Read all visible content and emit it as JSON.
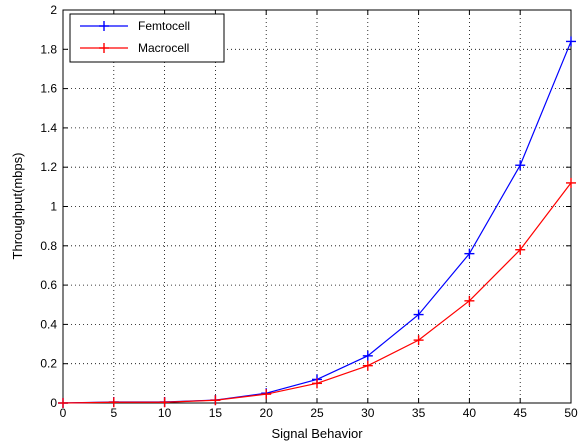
{
  "chart_data": {
    "type": "line",
    "xlabel": "Signal Behavior",
    "ylabel": "Throughput(mbps)",
    "x": [
      0,
      5,
      10,
      15,
      20,
      25,
      30,
      35,
      40,
      45,
      50
    ],
    "xlim": [
      0,
      50
    ],
    "ylim": [
      0,
      2
    ],
    "xticks": [
      "0",
      "5",
      "10",
      "15",
      "20",
      "25",
      "30",
      "35",
      "40",
      "45",
      "50"
    ],
    "yticks": [
      "0",
      "0.2",
      "0.4",
      "0.6",
      "0.8",
      "1",
      "1.2",
      "1.4",
      "1.6",
      "1.8",
      "2"
    ],
    "grid": true,
    "legend_position": "top-left",
    "series": [
      {
        "name": "Femtocell",
        "color": "#0000ff",
        "marker": "plus",
        "values": [
          0.0,
          0.005,
          0.005,
          0.015,
          0.05,
          0.12,
          0.24,
          0.45,
          0.76,
          1.21,
          1.84
        ]
      },
      {
        "name": "Macrocell",
        "color": "#ff0000",
        "marker": "plus",
        "values": [
          0.0,
          0.004,
          0.004,
          0.014,
          0.045,
          0.1,
          0.19,
          0.32,
          0.52,
          0.78,
          1.12
        ]
      }
    ]
  }
}
